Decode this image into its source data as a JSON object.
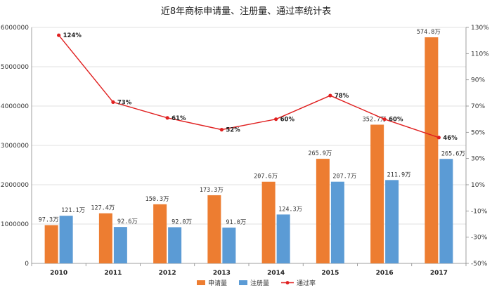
{
  "chart_data": {
    "type": "bar",
    "title": "近8年商标申请量、注册量、通过率统计表",
    "categories": [
      "2010",
      "2011",
      "2012",
      "2013",
      "2014",
      "2015",
      "2016",
      "2017"
    ],
    "series": [
      {
        "name": "申请量",
        "axis": "left",
        "color": "#ED7D31",
        "values": [
          973000,
          1274000,
          1503000,
          1733000,
          2076000,
          2659000,
          3527000,
          5748000
        ],
        "labels": [
          "97.3万",
          "127.4万",
          "150.3万",
          "173.3万",
          "207.6万",
          "265.9万",
          "352.7万",
          "574.8万"
        ]
      },
      {
        "name": "注册量",
        "axis": "left",
        "color": "#5B9BD5",
        "values": [
          1211000,
          926000,
          920000,
          910000,
          1243000,
          2077000,
          2119000,
          2656000
        ],
        "labels": [
          "121.1万",
          "92.6万",
          "92.0万",
          "91.0万",
          "124.3万",
          "207.7万",
          "211.9万",
          "265.6万"
        ]
      },
      {
        "name": "通过率",
        "axis": "right",
        "type": "line",
        "color": "#E02020",
        "values": [
          124,
          73,
          61,
          52,
          60,
          78,
          60,
          46
        ],
        "labels": [
          "124%",
          "73%",
          "61%",
          "52%",
          "60%",
          "78%",
          "60%",
          "46%"
        ]
      }
    ],
    "y_left": {
      "ylim": [
        0,
        6000000
      ],
      "ticks": [
        0,
        1000000,
        2000000,
        3000000,
        4000000,
        5000000,
        6000000
      ],
      "tick_labels": [
        "0",
        "1000000",
        "2000000",
        "3000000",
        "4000000",
        "5000000",
        "6000000"
      ]
    },
    "y_right": {
      "ylim": [
        -50,
        130
      ],
      "ticks": [
        -50,
        -30,
        -10,
        10,
        30,
        50,
        70,
        90,
        110,
        130
      ],
      "tick_labels": [
        "-50%",
        "-30%",
        "-10%",
        "10%",
        "30%",
        "50%",
        "70%",
        "90%",
        "110%",
        "130%"
      ]
    },
    "grid": true,
    "legend": "bottom"
  }
}
